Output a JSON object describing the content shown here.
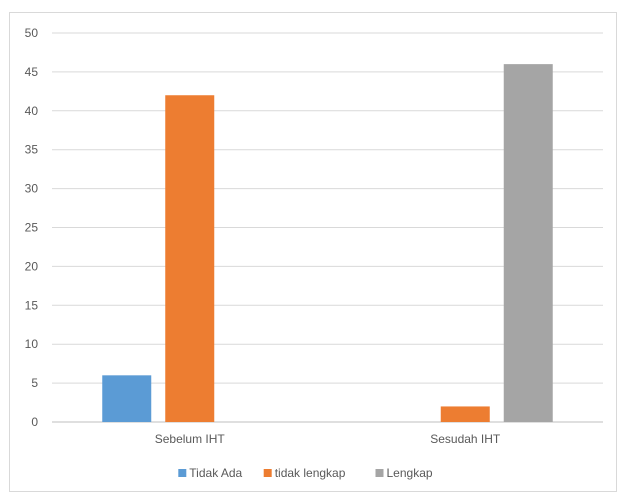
{
  "title": "",
  "chart_data": {
    "type": "bar",
    "categories": [
      "Sebelum IHT",
      "Sesudah IHT"
    ],
    "series": [
      {
        "name": "Tidak Ada",
        "values": [
          6,
          0
        ],
        "color": "#5b9bd5"
      },
      {
        "name": "tidak lengkap",
        "values": [
          42,
          2
        ],
        "color": "#ed7d31"
      },
      {
        "name": "Lengkap",
        "values": [
          0,
          46
        ],
        "color": "#a5a5a5"
      }
    ],
    "ylim": [
      0,
      50
    ],
    "yticks": [
      0,
      5,
      10,
      15,
      20,
      25,
      30,
      35,
      40,
      45,
      50
    ],
    "grid": true,
    "legend": "bottom",
    "xlabel": "",
    "ylabel": ""
  }
}
